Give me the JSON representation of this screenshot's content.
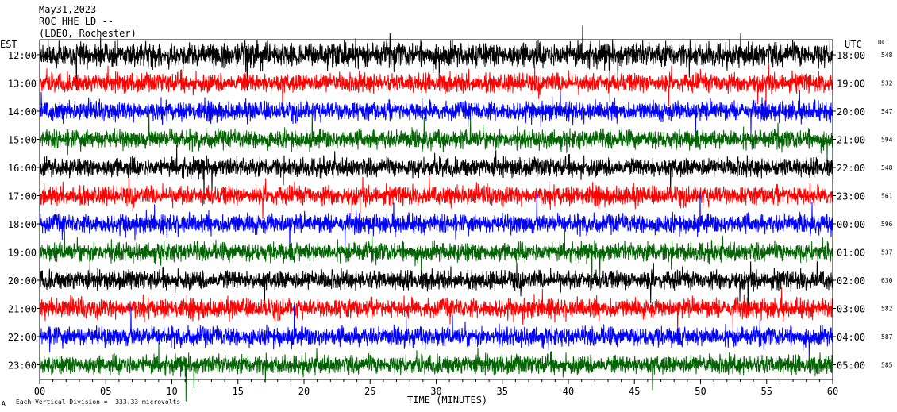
{
  "header": {
    "date": "May31,2023",
    "station": "ROC HHE LD --",
    "network": "(LDEO, Rochester)"
  },
  "left_axis_label": "EST",
  "right_axis_label": "UTC",
  "dc_label": "DC",
  "footer": {
    "scale_note": "Each Vertical Division =  333.33 microvolts",
    "corner_mark": "A"
  },
  "chart_data": {
    "type": "line",
    "title": "",
    "xlabel": "TIME (MINUTES)",
    "xlim": [
      0,
      60
    ],
    "x_ticks": [
      "00",
      "05",
      "10",
      "15",
      "20",
      "25",
      "30",
      "35",
      "40",
      "45",
      "50",
      "55",
      "60"
    ],
    "rows": [
      {
        "est": "12:00",
        "utc": "18:00",
        "dc": "548",
        "color": "#000000"
      },
      {
        "est": "13:00",
        "utc": "19:00",
        "dc": "532",
        "color": "#ff0000"
      },
      {
        "est": "14:00",
        "utc": "20:00",
        "dc": "547",
        "color": "#0000ff"
      },
      {
        "est": "15:00",
        "utc": "21:00",
        "dc": "594",
        "color": "#006400"
      },
      {
        "est": "16:00",
        "utc": "22:00",
        "dc": "548",
        "color": "#000000"
      },
      {
        "est": "17:00",
        "utc": "23:00",
        "dc": "561",
        "color": "#ff0000"
      },
      {
        "est": "18:00",
        "utc": "00:00",
        "dc": "596",
        "color": "#0000ff"
      },
      {
        "est": "19:00",
        "utc": "01:00",
        "dc": "537",
        "color": "#006400"
      },
      {
        "est": "20:00",
        "utc": "02:00",
        "dc": "630",
        "color": "#000000"
      },
      {
        "est": "21:00",
        "utc": "03:00",
        "dc": "582",
        "color": "#ff0000"
      },
      {
        "est": "22:00",
        "utc": "04:00",
        "dc": "587",
        "color": "#0000ff"
      },
      {
        "est": "23:00",
        "utc": "05:00",
        "dc": "585",
        "color": "#006400"
      }
    ]
  }
}
